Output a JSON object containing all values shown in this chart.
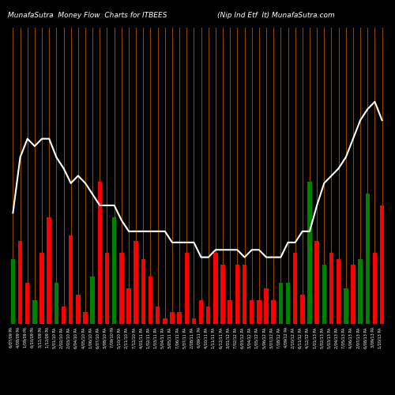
{
  "title_left": "MunafaSutra  Money Flow  Charts for ITBEES",
  "title_right": "(Nip Ind Etf  It) MunafaSutra.com",
  "background_color": "#000000",
  "bar_colors": [
    "green",
    "red",
    "red",
    "green",
    "red",
    "red",
    "green",
    "red",
    "red",
    "red",
    "red",
    "green",
    "red",
    "red",
    "green",
    "red",
    "red",
    "red",
    "red",
    "red",
    "red",
    "red",
    "red",
    "red",
    "red",
    "red",
    "red",
    "red",
    "red",
    "red",
    "red",
    "red",
    "red",
    "red",
    "red",
    "red",
    "red",
    "green",
    "green",
    "red",
    "red",
    "green",
    "red",
    "green",
    "red",
    "red",
    "green",
    "red",
    "green",
    "green",
    "red",
    "red"
  ],
  "bar_values": [
    55,
    70,
    35,
    20,
    60,
    90,
    35,
    15,
    75,
    25,
    10,
    40,
    120,
    60,
    90,
    60,
    30,
    70,
    55,
    40,
    15,
    5,
    10,
    10,
    60,
    5,
    20,
    15,
    60,
    50,
    20,
    50,
    50,
    20,
    20,
    30,
    20,
    35,
    35,
    60,
    25,
    120,
    70,
    50,
    60,
    55,
    30,
    50,
    55,
    110,
    60,
    100
  ],
  "line_values": [
    160,
    175,
    180,
    178,
    180,
    180,
    175,
    172,
    168,
    170,
    168,
    165,
    162,
    162,
    162,
    158,
    155,
    155,
    155,
    155,
    155,
    155,
    152,
    152,
    152,
    152,
    148,
    148,
    150,
    150,
    150,
    150,
    148,
    150,
    150,
    148,
    148,
    148,
    152,
    152,
    155,
    155,
    162,
    168,
    170,
    172,
    175,
    180,
    185,
    188,
    190,
    185
  ],
  "line_color": "#ffffff",
  "grid_color": "#8B4500",
  "n_bars": 52,
  "ylim_bars": [
    0,
    250
  ],
  "ylim_line_min": 130,
  "ylim_line_max": 210,
  "xlabel_rotation": 90,
  "x_labels": [
    "6/07/09 PA",
    "4/08/09 PA",
    "1/09/09 PA",
    "6/10/09 PA",
    "3/11/09 PA",
    "1/12/09 PA",
    "5/01/10 PA",
    "2/02/10 PA",
    "2/03/10 PA",
    "6/04/10 PA",
    "4/05/10 PA",
    "1/06/10 PA",
    "6/07/10 PA",
    "3/08/10 PA",
    "7/09/10 PA",
    "5/10/10 PA",
    "2/11/10 PA",
    "7/12/10 PA",
    "4/01/11 PA",
    "1/02/11 PA",
    "1/03/11 PA",
    "5/04/11 PA",
    "3/05/11 PA",
    "7/06/11 PA",
    "5/07/11 PA",
    "2/08/11 PA",
    "6/09/11 PA",
    "4/10/11 PA",
    "1/11/11 PA",
    "6/12/11 PA",
    "3/01/12 PA",
    "7/02/12 PA",
    "6/03/12 PA",
    "3/04/12 PA",
    "1/05/12 PA",
    "5/06/12 PA",
    "3/07/12 PA",
    "7/08/12 PA",
    "4/09/12 PA",
    "2/10/12 PA",
    "6/11/12 PA",
    "4/12/12 PA",
    "1/01/13 PA",
    "5/02/13 PA",
    "5/03/13 PA",
    "2/04/13 PA",
    "7/05/13 PA",
    "4/06/13 PA",
    "2/07/13 PA",
    "6/08/13 PA",
    "3/09/13 PA",
    "1/10/13 PA"
  ]
}
